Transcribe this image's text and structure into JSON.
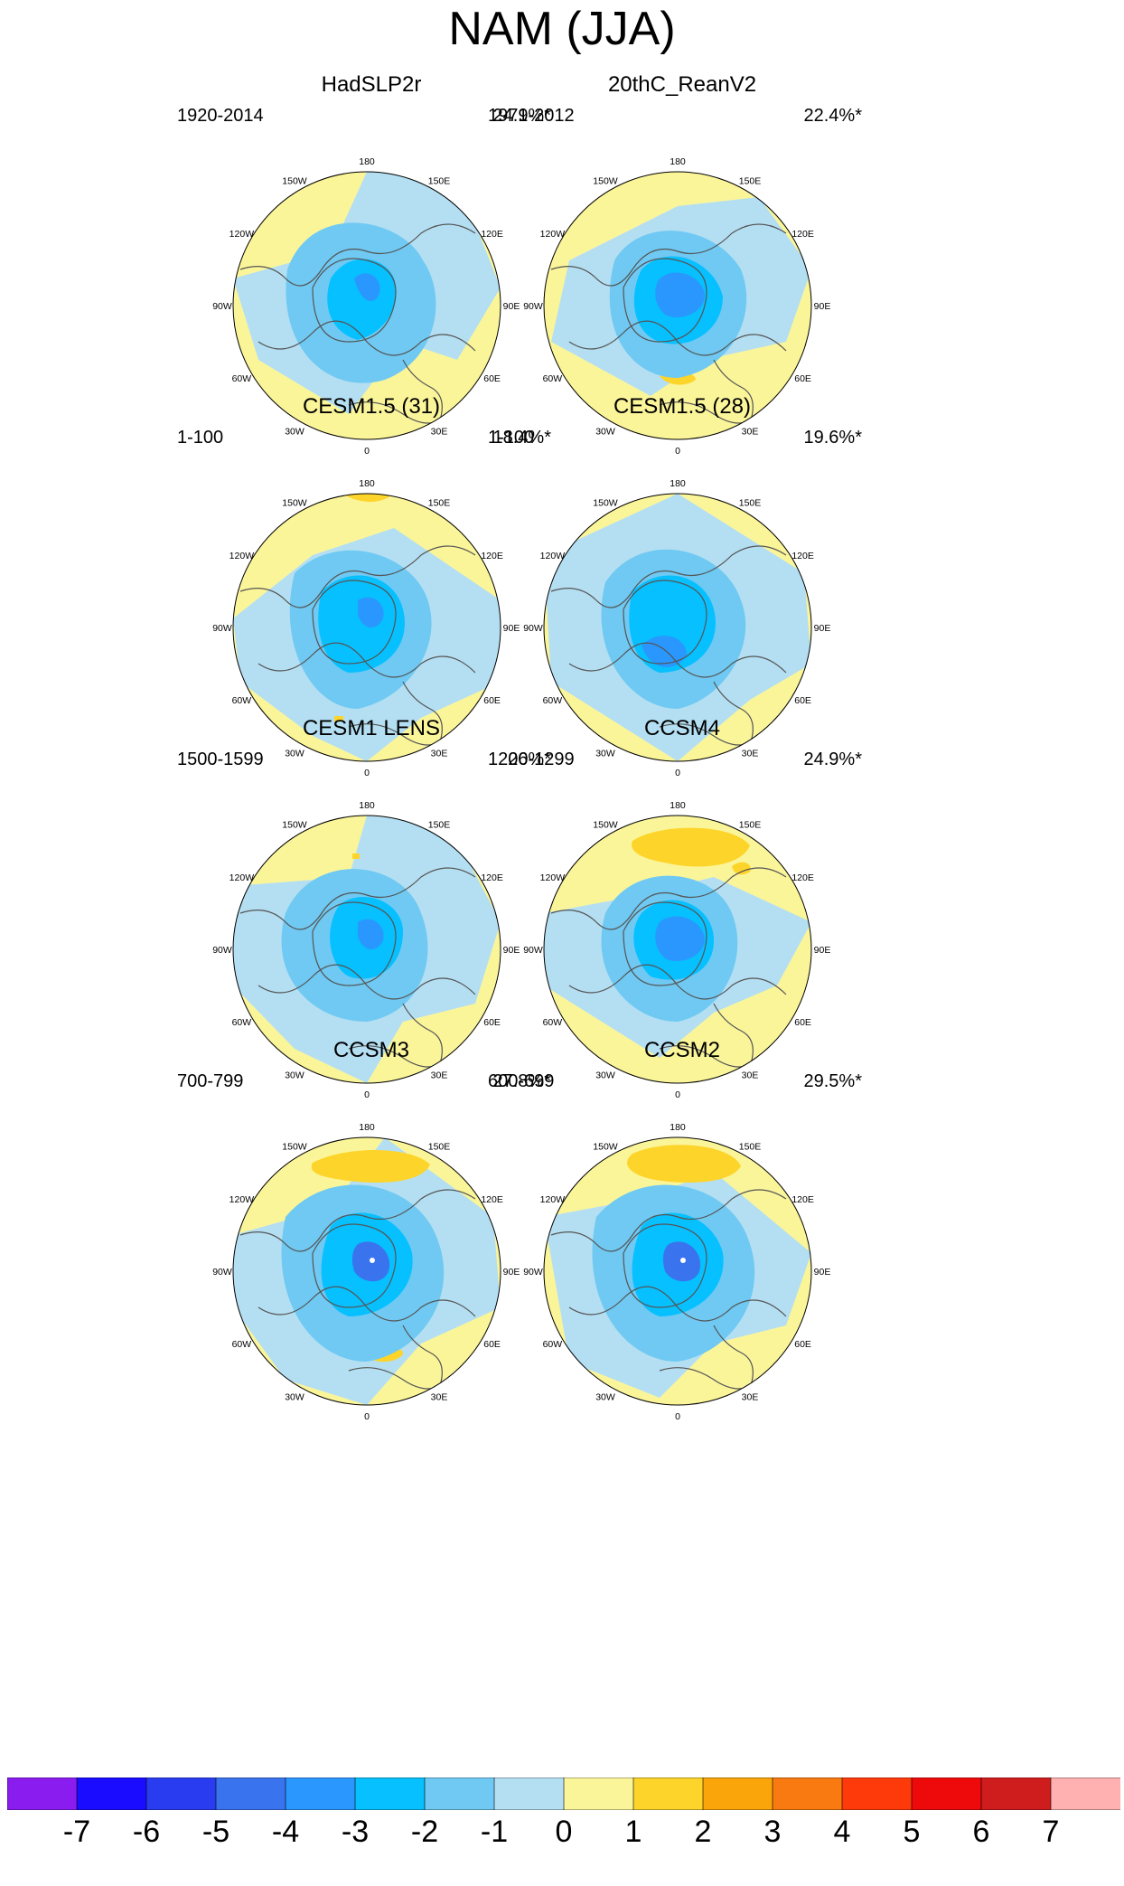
{
  "title": "NAM (JJA)",
  "chart_data": {
    "type": "polar-stereographic-map-grid",
    "variable": "NAM sea level pressure anomaly",
    "season": "JJA",
    "panels": [
      {
        "title": "HadSLP2r",
        "period": "1920-2014",
        "variance": "24.1%*",
        "center_min": -4
      },
      {
        "title": "20thC_ReanV2",
        "period": "1979-2012",
        "variance": "22.4%*",
        "center_min": -4
      },
      {
        "title": "CESM1.5 (31)",
        "period": "1-100",
        "variance": "18.4%*",
        "center_min": -4
      },
      {
        "title": "CESM1.5 (28)",
        "period": "1-100",
        "variance": "19.6%*",
        "center_min": -4
      },
      {
        "title": "CESM1 LENS",
        "period": "1500-1599",
        "variance": "26%*",
        "center_min": -4
      },
      {
        "title": "CCSM4",
        "period": "1200-1299",
        "variance": "24.9%*",
        "center_min": -4
      },
      {
        "title": "CCSM3",
        "period": "700-799",
        "variance": "27.8%*",
        "center_min": -5
      },
      {
        "title": "CCSM2",
        "period": "600-699",
        "variance": "29.5%*",
        "center_min": -5
      }
    ],
    "longitude_labels": [
      "180",
      "150W",
      "150E",
      "120W",
      "120E",
      "90W",
      "90E",
      "60W",
      "60E",
      "30W",
      "30E",
      "0"
    ],
    "colorbar": {
      "tick_labels": [
        "-7",
        "-6",
        "-5",
        "-4",
        "-3",
        "-2",
        "-1",
        "0",
        "1",
        "2",
        "3",
        "4",
        "5",
        "6",
        "7"
      ],
      "colors": [
        "#8a1cf0",
        "#1a0cff",
        "#2a3cf0",
        "#3a73ee",
        "#2a97ff",
        "#06c0ff",
        "#6fc9f2",
        "#b4dff2",
        "#fbf59a",
        "#fdd42a",
        "#faa50a",
        "#f97a10",
        "#ff3a0a",
        "#ee0a0a",
        "#cf1c1c",
        "#ffb1b1"
      ]
    }
  }
}
